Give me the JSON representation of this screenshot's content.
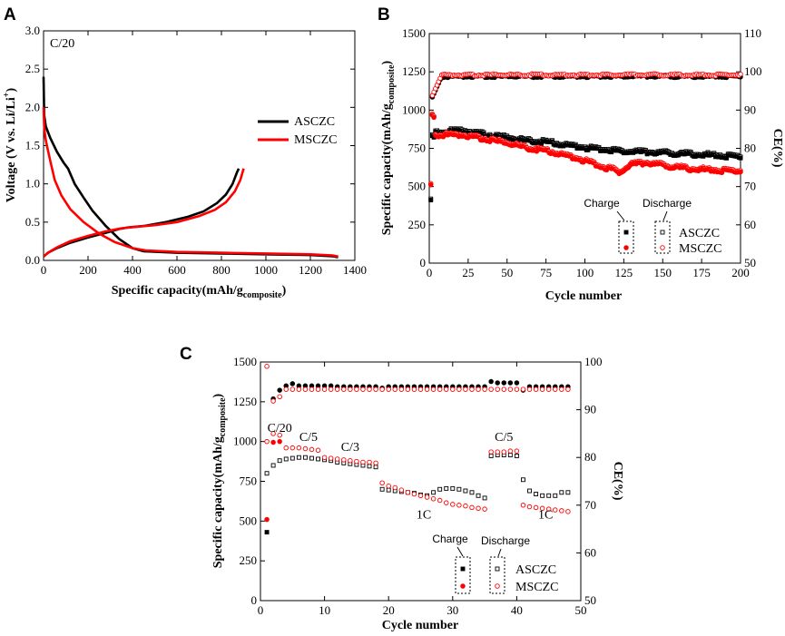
{
  "panels": {
    "a": "A",
    "b": "B",
    "c": "C"
  },
  "chart_data": [
    {
      "panel": "A",
      "type": "line",
      "title": "",
      "annotation": "C/20",
      "xlabel": "Specific capacity(mAh/g",
      "xlabel_sub": "composite",
      "xlabel_close": ")",
      "ylabel": "Voltage (V vs. Li/Li",
      "ylabel_sup": "+",
      "ylabel_close": ")",
      "xlim": [
        0,
        1400
      ],
      "ylim": [
        0,
        3.0
      ],
      "xticks": [
        "0",
        "200",
        "400",
        "600",
        "800",
        "1000",
        "1200",
        "1400"
      ],
      "yticks": [
        "0.0",
        "0.5",
        "1.0",
        "1.5",
        "2.0",
        "2.5",
        "3.0"
      ],
      "legend": [
        "ASCZC",
        "MSCZC"
      ],
      "series": [
        {
          "name": "ASCZC",
          "color": "#000000",
          "discharge": [
            [
              0,
              2.4
            ],
            [
              3,
              1.9
            ],
            [
              10,
              1.75
            ],
            [
              30,
              1.6
            ],
            [
              60,
              1.42
            ],
            [
              90,
              1.28
            ],
            [
              110,
              1.2
            ],
            [
              140,
              1.0
            ],
            [
              180,
              0.82
            ],
            [
              220,
              0.65
            ],
            [
              280,
              0.45
            ],
            [
              340,
              0.28
            ],
            [
              400,
              0.16
            ],
            [
              450,
              0.12
            ],
            [
              600,
              0.1
            ],
            [
              800,
              0.09
            ],
            [
              1000,
              0.08
            ],
            [
              1200,
              0.07
            ],
            [
              1300,
              0.055
            ],
            [
              1325,
              0.04
            ]
          ],
          "charge": [
            [
              0,
              0.05
            ],
            [
              20,
              0.1
            ],
            [
              60,
              0.16
            ],
            [
              120,
              0.23
            ],
            [
              200,
              0.3
            ],
            [
              280,
              0.36
            ],
            [
              340,
              0.41
            ],
            [
              380,
              0.43
            ],
            [
              450,
              0.45
            ],
            [
              550,
              0.5
            ],
            [
              650,
              0.57
            ],
            [
              720,
              0.64
            ],
            [
              780,
              0.75
            ],
            [
              820,
              0.86
            ],
            [
              850,
              1.0
            ],
            [
              870,
              1.15
            ],
            [
              878,
              1.2
            ]
          ]
        },
        {
          "name": "MSCZC",
          "color": "#ff0000",
          "discharge": [
            [
              0,
              2.0
            ],
            [
              3,
              1.75
            ],
            [
              8,
              1.6
            ],
            [
              15,
              1.5
            ],
            [
              30,
              1.3
            ],
            [
              50,
              1.05
            ],
            [
              80,
              0.85
            ],
            [
              120,
              0.67
            ],
            [
              180,
              0.5
            ],
            [
              250,
              0.35
            ],
            [
              320,
              0.24
            ],
            [
              400,
              0.16
            ],
            [
              460,
              0.13
            ],
            [
              600,
              0.11
            ],
            [
              800,
              0.1
            ],
            [
              1000,
              0.09
            ],
            [
              1200,
              0.08
            ],
            [
              1300,
              0.065
            ],
            [
              1325,
              0.05
            ]
          ],
          "charge": [
            [
              0,
              0.05
            ],
            [
              20,
              0.1
            ],
            [
              60,
              0.17
            ],
            [
              120,
              0.25
            ],
            [
              200,
              0.32
            ],
            [
              280,
              0.38
            ],
            [
              350,
              0.42
            ],
            [
              420,
              0.44
            ],
            [
              500,
              0.46
            ],
            [
              600,
              0.5
            ],
            [
              700,
              0.58
            ],
            [
              770,
              0.66
            ],
            [
              820,
              0.76
            ],
            [
              860,
              0.9
            ],
            [
              885,
              1.05
            ],
            [
              900,
              1.2
            ]
          ]
        }
      ]
    },
    {
      "panel": "B",
      "type": "scatter",
      "title": "",
      "xlabel": "Cycle number",
      "ylabel": "Specific capacity(mAh/g",
      "ylabel_sub": "composite",
      "ylabel_close": ")",
      "y2label": "CE(%)",
      "xlim": [
        0,
        200
      ],
      "ylim": [
        0,
        1500
      ],
      "y2lim": [
        50,
        110
      ],
      "xticks": [
        "0",
        "25",
        "50",
        "75",
        "100",
        "125",
        "150",
        "175",
        "200"
      ],
      "yticks": [
        "0",
        "250",
        "500",
        "750",
        "1000",
        "1250",
        "1500"
      ],
      "y2ticks": [
        "50",
        "60",
        "70",
        "80",
        "90",
        "100",
        "110"
      ],
      "legend_headers": [
        "Charge",
        "Discharge"
      ],
      "legend": [
        "ASCZC",
        "MSCZC"
      ],
      "series": [
        {
          "name": "ASCZC",
          "color": "#000000",
          "capacity_knots": [
            [
              1,
              860
            ],
            [
              5,
              860
            ],
            [
              20,
              875
            ],
            [
              40,
              840
            ],
            [
              60,
              810
            ],
            [
              80,
              790
            ],
            [
              100,
              760
            ],
            [
              125,
              735
            ],
            [
              150,
              725
            ],
            [
              175,
              715
            ],
            [
              200,
              700
            ]
          ],
          "first_cycle": [
            [
              1,
              420
            ],
            [
              2,
              840
            ],
            [
              3,
              830
            ]
          ],
          "ce": 98.8
        },
        {
          "name": "MSCZC",
          "color": "#ff0000",
          "capacity_knots": [
            [
              1,
              850
            ],
            [
              5,
              845
            ],
            [
              20,
              845
            ],
            [
              35,
              820
            ],
            [
              50,
              790
            ],
            [
              65,
              755
            ],
            [
              80,
              730
            ],
            [
              95,
              690
            ],
            [
              105,
              660
            ],
            [
              112,
              630
            ],
            [
              118,
              620
            ],
            [
              122,
              600
            ],
            [
              125,
              615
            ],
            [
              130,
              650
            ],
            [
              140,
              660
            ],
            [
              150,
              645
            ],
            [
              165,
              625
            ],
            [
              180,
              615
            ],
            [
              200,
              605
            ]
          ],
          "first_cycle": [
            [
              1,
              520
            ],
            [
              2,
              975
            ],
            [
              3,
              960
            ]
          ],
          "ce": 99.2
        }
      ]
    },
    {
      "panel": "C",
      "type": "scatter",
      "title": "",
      "xlabel": "Cycle number",
      "ylabel": "Specific capacity(mAh/g",
      "ylabel_sub": "composite",
      "ylabel_close": ")",
      "y2label": "CE(%)",
      "xlim": [
        0,
        50
      ],
      "ylim": [
        0,
        1500
      ],
      "y2lim": [
        50,
        105
      ],
      "xticks": [
        "0",
        "10",
        "20",
        "30",
        "40",
        "50"
      ],
      "yticks": [
        "0",
        "250",
        "500",
        "750",
        "1000",
        "1250",
        "1500"
      ],
      "y2ticks": [
        "50",
        "60",
        "70",
        "80",
        "90",
        "100"
      ],
      "rate_labels": [
        {
          "text": "C/20",
          "x": 3,
          "y": 1060
        },
        {
          "text": "C/5",
          "x": 7.5,
          "y": 1005
        },
        {
          "text": "C/3",
          "x": 14,
          "y": 940
        },
        {
          "text": "1C",
          "x": 25.5,
          "y": 515
        },
        {
          "text": "C/5",
          "x": 38,
          "y": 1005
        },
        {
          "text": "1C",
          "x": 44.5,
          "y": 515
        }
      ],
      "legend_headers": [
        "Charge",
        "Discharge"
      ],
      "legend": [
        "ASCZC",
        "MSCZC"
      ],
      "series": [
        {
          "name": "ASCZC",
          "color": "#000000",
          "discharge": [
            800,
            850,
            880,
            890,
            895,
            900,
            900,
            895,
            890,
            885,
            880,
            870,
            865,
            860,
            855,
            850,
            845,
            840,
            700,
            695,
            690,
            685,
            680,
            675,
            665,
            660,
            680,
            700,
            705,
            705,
            700,
            690,
            680,
            660,
            645,
            910,
            915,
            915,
            915,
            910,
            760,
            690,
            670,
            660,
            660,
            660,
            680,
            680
          ],
          "charge": [
            430,
            830,
            870,
            885,
            890,
            895,
            895,
            890,
            885,
            880,
            875,
            865,
            860,
            855,
            850,
            845,
            840,
            835,
            690,
            685,
            680,
            675,
            670,
            665,
            655,
            650,
            675,
            690,
            695,
            695,
            690,
            680,
            670,
            650,
            640,
            900,
            905,
            905,
            905,
            900,
            740,
            670,
            655,
            650,
            650,
            650,
            675,
            675
          ],
          "ce": [
            null,
            96.5,
            98.5,
            99.5,
            100,
            99.5,
            99.5,
            99.5,
            99.5,
            99.5,
            99.5,
            99.3,
            99.3,
            99.3,
            99.3,
            99.3,
            99.3,
            99.3,
            99,
            99.3,
            99.3,
            99.3,
            99.3,
            99.3,
            99.3,
            99.3,
            99.3,
            99.3,
            99.3,
            99.3,
            99.3,
            99.3,
            99.3,
            99.3,
            99.3,
            100.5,
            100.2,
            100.2,
            100.2,
            100.2,
            98.5,
            99.3,
            99.3,
            99.3,
            99.3,
            99.3,
            99.3,
            99.3
          ]
        },
        {
          "name": "MSCZC",
          "color": "#ff0000",
          "discharge": [
            1000,
            1050,
            1040,
            960,
            960,
            960,
            955,
            950,
            945,
            900,
            895,
            890,
            885,
            880,
            875,
            870,
            870,
            865,
            740,
            720,
            710,
            695,
            680,
            670,
            660,
            650,
            640,
            630,
            615,
            605,
            600,
            595,
            585,
            580,
            575,
            935,
            935,
            935,
            940,
            940,
            600,
            590,
            585,
            580,
            575,
            570,
            565,
            560
          ],
          "charge": [
            510,
            995,
            1000,
            955,
            955,
            955,
            950,
            945,
            940,
            895,
            890,
            885,
            880,
            875,
            870,
            865,
            865,
            860,
            735,
            715,
            705,
            690,
            675,
            665,
            655,
            645,
            635,
            625,
            610,
            600,
            595,
            590,
            580,
            575,
            570,
            920,
            920,
            920,
            925,
            925,
            590,
            585,
            580,
            575,
            570,
            565,
            560,
            555
          ],
          "ce": [
            104,
            96,
            97,
            98.7,
            98.7,
            98.7,
            98.7,
            98.7,
            98.7,
            98.7,
            98.7,
            98.7,
            98.7,
            98.7,
            98.7,
            98.7,
            98.7,
            98.7,
            98.7,
            98.7,
            98.7,
            98.7,
            98.7,
            98.7,
            98.7,
            98.7,
            98.7,
            98.7,
            98.7,
            98.7,
            98.7,
            98.7,
            98.7,
            98.7,
            98.7,
            98.7,
            98.7,
            98.7,
            98.7,
            98.7,
            98.7,
            98.7,
            98.7,
            98.7,
            98.7,
            98.7,
            98.7,
            98.7
          ]
        }
      ]
    }
  ]
}
